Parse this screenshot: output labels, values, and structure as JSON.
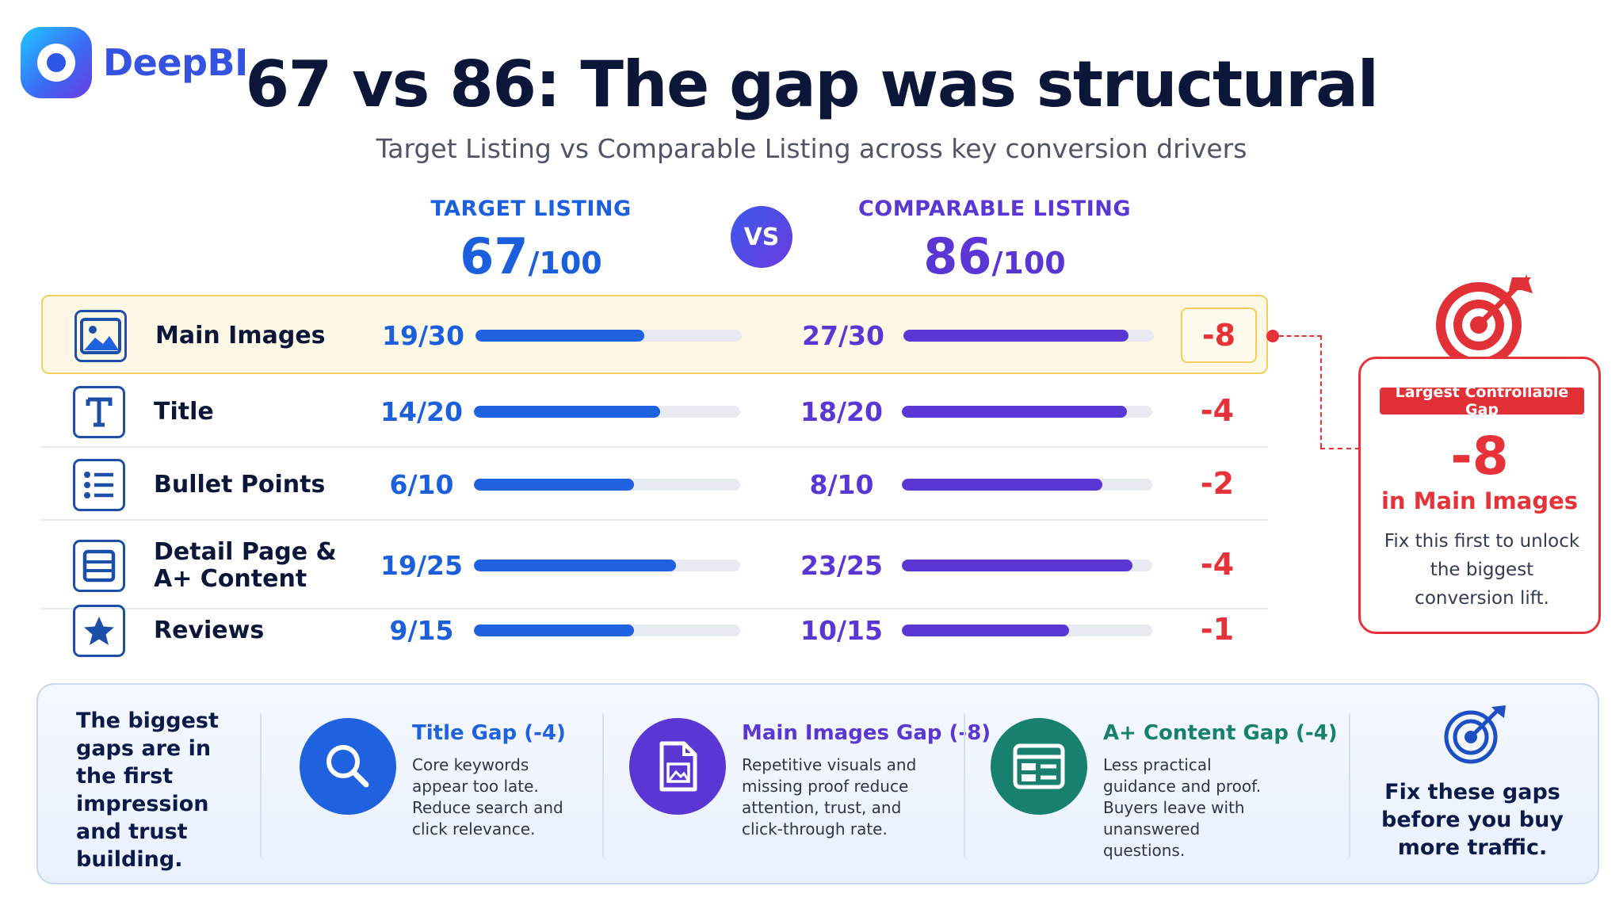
{
  "brand": {
    "name": "DeepBI"
  },
  "header": {
    "title": "67 vs 86: The gap was structural",
    "subtitle": "Target Listing vs Comparable Listing across key conversion drivers"
  },
  "columns": {
    "target": {
      "label": "TARGET LISTING",
      "score": "67",
      "denominator": "/100"
    },
    "vs": "VS",
    "comparable": {
      "label": "COMPARABLE LISTING",
      "score": "86",
      "denominator": "/100"
    }
  },
  "colors": {
    "target": "#1e62e0",
    "comparable": "#5a36d4",
    "gap": "#e8323a",
    "highlight": "#f2cf5c"
  },
  "chart_data": {
    "type": "bar",
    "categories": [
      "Main Images",
      "Title",
      "Bullet Points",
      "Detail Page & A+ Content",
      "Reviews"
    ],
    "series": [
      {
        "name": "TARGET LISTING",
        "values": [
          19,
          14,
          6,
          19,
          9
        ]
      },
      {
        "name": "COMPARABLE LISTING",
        "values": [
          27,
          18,
          8,
          23,
          10
        ]
      }
    ],
    "max_values": [
      30,
      20,
      10,
      25,
      15
    ]
  },
  "rows": [
    {
      "label": "Main Images",
      "icon": "image-icon",
      "target": "19/30",
      "comparable": "27/30",
      "gap": "-8"
    },
    {
      "label": "Title",
      "icon": "text-t-icon",
      "target": "14/20",
      "comparable": "18/20",
      "gap": "-4"
    },
    {
      "label": "Bullet Points",
      "icon": "list-icon",
      "target": "6/10",
      "comparable": "8/10",
      "gap": "-2"
    },
    {
      "label": "Detail Page &\nA+ Content",
      "icon": "layout-icon",
      "target": "19/25",
      "comparable": "23/25",
      "gap": "-4"
    },
    {
      "label": "Reviews",
      "icon": "star-icon",
      "target": "9/15",
      "comparable": "10/15",
      "gap": "-1"
    }
  ],
  "callout": {
    "tag": "Largest Controllable Gap",
    "value": "-8",
    "subtitle": "in Main Images",
    "text": "Fix this first to unlock the biggest conversion lift.",
    "icon": "target-arrow-icon"
  },
  "bottom": {
    "intro": "The biggest gaps are in the first impression and trust building.",
    "items": [
      {
        "title": "Title Gap (-4)",
        "text": "Core keywords appear too late. Reduce search and click relevance.",
        "icon": "search-icon",
        "color": "#1e62e0"
      },
      {
        "title": "Main Images Gap (-8)",
        "text": "Repetitive visuals and missing proof reduce attention, trust, and click-through rate.",
        "icon": "image-file-icon",
        "color": "#5a36d4"
      },
      {
        "title": "A+ Content Gap (-4)",
        "text": "Less practical guidance and proof. Buyers leave with unanswered questions.",
        "icon": "content-layout-icon",
        "color": "#17806f"
      }
    ],
    "closing": "Fix these gaps before you buy more traffic."
  }
}
